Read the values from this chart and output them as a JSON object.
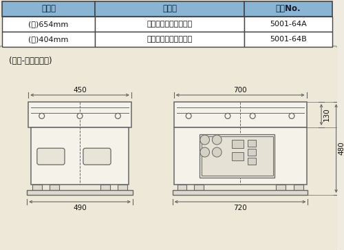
{
  "bg_color": "#f0ebe0",
  "table_header_bg": "#8ab4d4",
  "table_header_text_color": "#1a1a2e",
  "table_row_bg": "#ffffff",
  "table_border_color": "#444444",
  "table_col1_header": "寸　法",
  "table_col2_header": "備　考",
  "table_col3_header": "コーNo.",
  "table_rows": [
    [
      "(長)654mm",
      "両端固定用ハンドル付",
      "5001-64A"
    ],
    [
      "(短)404mm",
      "両端固定用ハンドル付",
      "5001-64B"
    ]
  ],
  "diagram_label": "(ＭＷ-ＹＳ・ＹＮ)",
  "line_color": "#666666",
  "diagram_bg": "#ede8d8",
  "device_fill": "#f5f2ea",
  "device_edge": "#666666"
}
